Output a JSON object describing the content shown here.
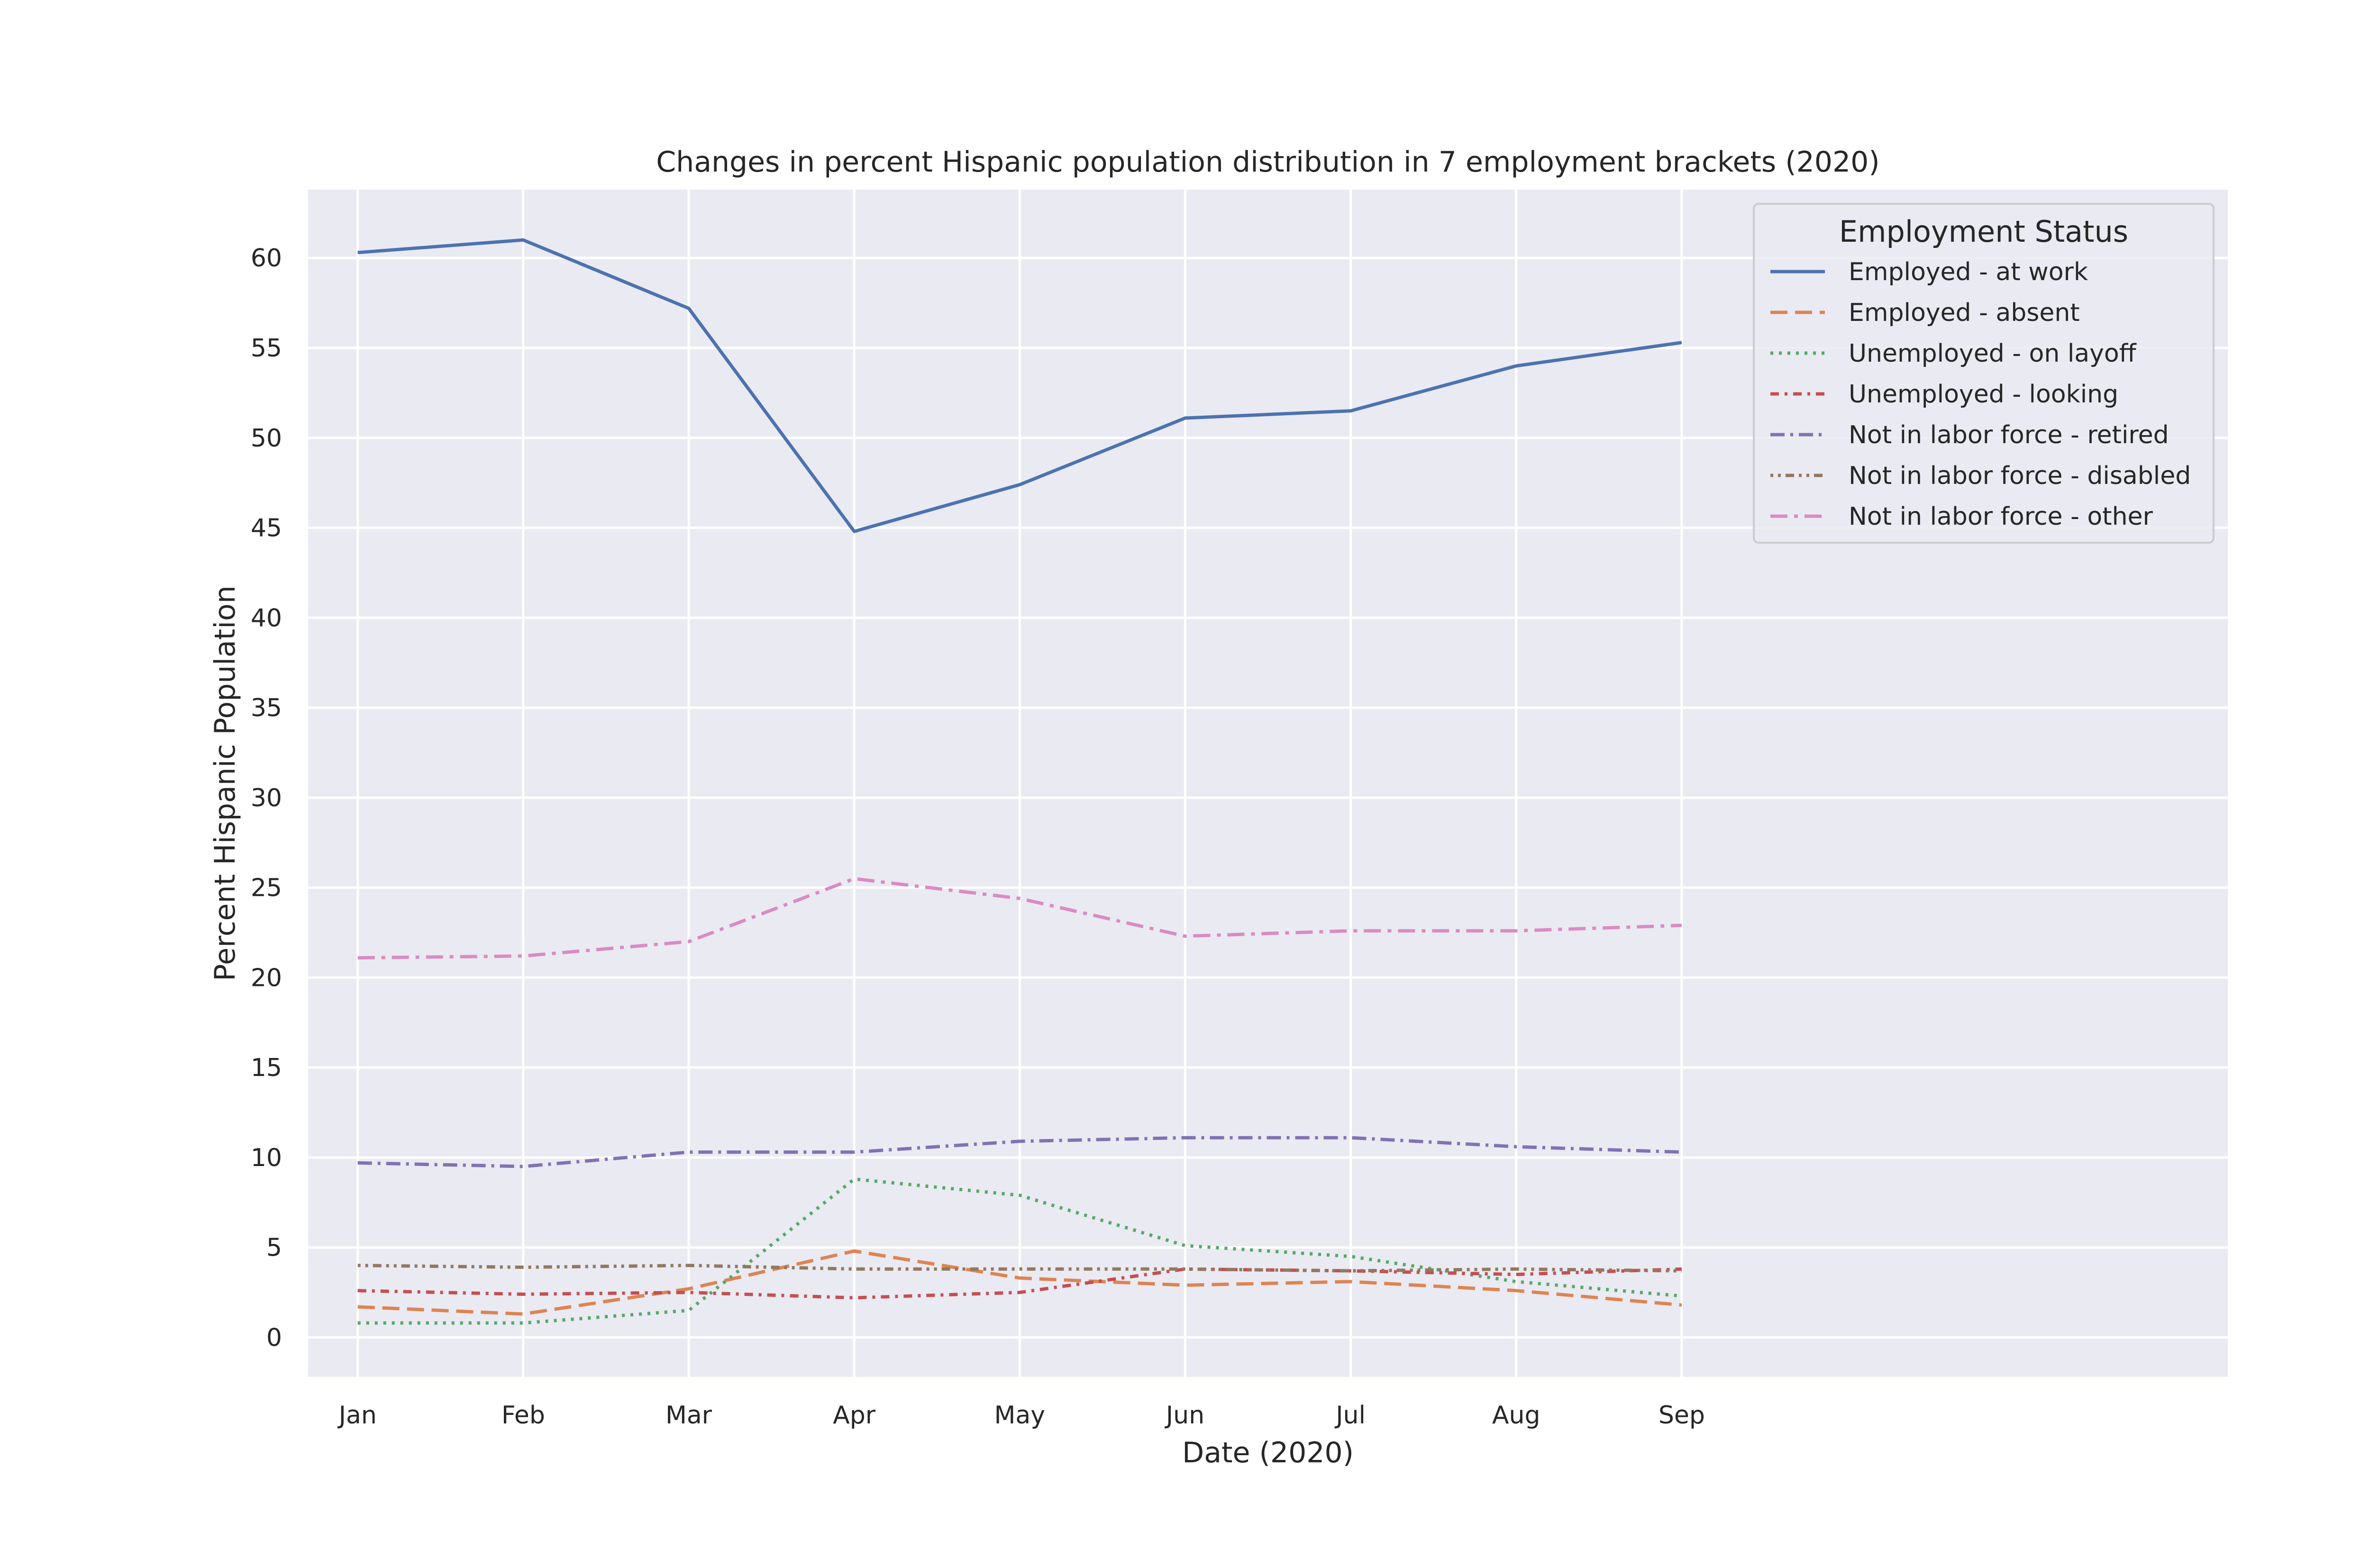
{
  "chart_data": {
    "type": "line",
    "title": "Changes in percent Hispanic population distribution in 7 employment brackets (2020)",
    "xlabel": "Date (2020)",
    "ylabel": "Percent Hispanic Population",
    "categories": [
      "Jan",
      "Feb",
      "Mar",
      "Apr",
      "May",
      "Jun",
      "Jul",
      "Aug",
      "Sep"
    ],
    "x_extent": [
      -0.3,
      11.3
    ],
    "ylim": [
      -2.2,
      63.8
    ],
    "yticks": [
      0,
      5,
      10,
      15,
      20,
      25,
      30,
      35,
      40,
      45,
      50,
      55,
      60
    ],
    "grid": true,
    "legend": {
      "title": "Employment Status",
      "placement": "top-right"
    },
    "series": [
      {
        "name": "Employed - at work",
        "color": "#4c72b0",
        "dash": "solid",
        "values": [
          60.3,
          61.0,
          57.2,
          44.8,
          47.4,
          51.1,
          51.5,
          54.0,
          55.3
        ]
      },
      {
        "name": "Employed - absent",
        "color": "#dd8452",
        "dash": "dashed",
        "values": [
          1.7,
          1.3,
          2.7,
          4.8,
          3.3,
          2.9,
          3.1,
          2.6,
          1.8
        ]
      },
      {
        "name": "Unemployed - on layoff",
        "color": "#55a868",
        "dash": "dotted",
        "values": [
          0.8,
          0.8,
          1.5,
          8.8,
          7.9,
          5.1,
          4.5,
          3.1,
          2.3
        ]
      },
      {
        "name": "Unemployed - looking",
        "color": "#c44e52",
        "dash": "densedash",
        "values": [
          2.6,
          2.4,
          2.5,
          2.2,
          2.5,
          3.8,
          3.7,
          3.5,
          3.8
        ]
      },
      {
        "name": "Not in labor force - retired",
        "color": "#8172b3",
        "dash": "dashdot",
        "values": [
          9.7,
          9.5,
          10.3,
          10.3,
          10.9,
          11.1,
          11.1,
          10.6,
          10.3
        ]
      },
      {
        "name": "Not in labor force - disabled",
        "color": "#937860",
        "dash": "densedot",
        "values": [
          4.0,
          3.9,
          4.0,
          3.8,
          3.8,
          3.8,
          3.7,
          3.8,
          3.7
        ]
      },
      {
        "name": "Not in labor force - other",
        "color": "#da8bc3",
        "dash": "longdashdot",
        "values": [
          21.1,
          21.2,
          22.0,
          25.5,
          24.4,
          22.3,
          22.6,
          22.6,
          22.9
        ]
      }
    ]
  }
}
